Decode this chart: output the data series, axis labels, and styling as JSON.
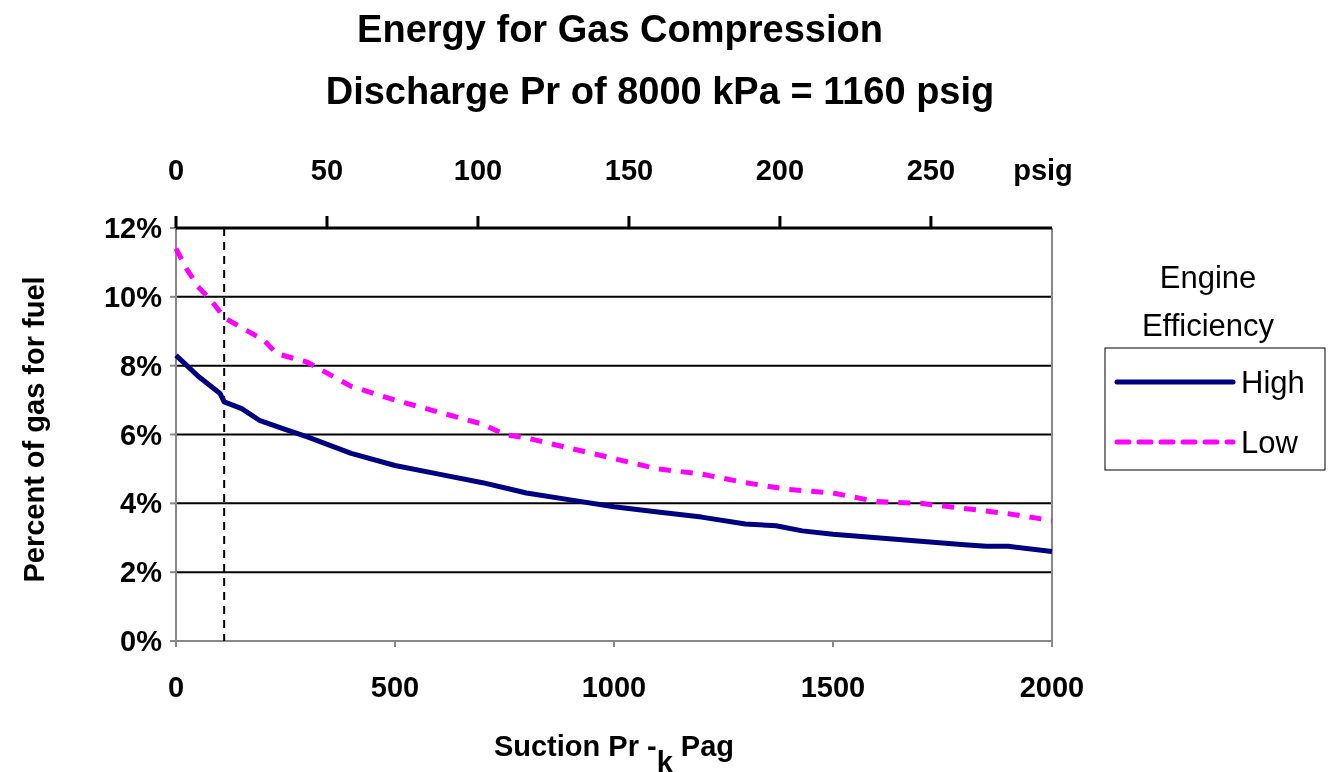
{
  "chart_data": {
    "type": "line",
    "title": "Energy for Gas Compression",
    "subtitle": "Discharge Pr of 8000 kPa = 1160 psig",
    "xlabel": "Suction Pr -$_{k}$ Pag",
    "ylabel": "Percent of gas for fuel",
    "x2label": "psig",
    "legend_title": "Engine Efficiency",
    "legend": "right",
    "grid": "y",
    "xlim": [
      0,
      2000
    ],
    "xticks": [
      0,
      500,
      1000,
      1500,
      2000
    ],
    "x2lim": [
      0,
      290.1
    ],
    "x2ticks": [
      0,
      50,
      100,
      150,
      200,
      250
    ],
    "ylim": [
      0,
      12
    ],
    "yticks": [
      {
        "value": 0,
        "label": "0%"
      },
      {
        "value": 2,
        "label": "2%"
      },
      {
        "value": 4,
        "label": "4%"
      },
      {
        "value": 6,
        "label": "6%"
      },
      {
        "value": 8,
        "label": "8%"
      },
      {
        "value": 10,
        "label": "10%"
      },
      {
        "value": 12,
        "label": "12%"
      }
    ],
    "ref_lines": [
      {
        "axis": "x",
        "value": 110,
        "color": "#000000",
        "line_style": "dashed"
      }
    ],
    "series": [
      {
        "name": "High",
        "color": "#000080",
        "line_style": "solid",
        "x": [
          0,
          25,
          50,
          100,
          110,
          150,
          192,
          249,
          300,
          400,
          500,
          600,
          700,
          800,
          900,
          1000,
          1100,
          1200,
          1300,
          1370,
          1430,
          1500,
          1600,
          1700,
          1800,
          1850,
          1900,
          2000
        ],
        "values": [
          8.3,
          8.0,
          7.7,
          7.2,
          6.95,
          6.75,
          6.4,
          6.15,
          5.93,
          5.45,
          5.1,
          4.85,
          4.6,
          4.3,
          4.1,
          3.9,
          3.75,
          3.6,
          3.4,
          3.35,
          3.2,
          3.1,
          3.0,
          2.9,
          2.8,
          2.75,
          2.75,
          2.6
        ]
      },
      {
        "name": "Low",
        "color": "#ff00ff",
        "line_style": "dashed",
        "x": [
          0,
          25,
          50,
          80,
          110,
          150,
          200,
          230,
          300,
          400,
          500,
          600,
          700,
          750,
          800,
          900,
          1000,
          1100,
          1200,
          1300,
          1400,
          1500,
          1600,
          1700,
          1800,
          1900,
          2000
        ],
        "values": [
          11.4,
          10.8,
          10.3,
          9.9,
          9.4,
          9.1,
          8.75,
          8.35,
          8.1,
          7.4,
          7.0,
          6.65,
          6.3,
          6.0,
          5.9,
          5.6,
          5.3,
          5.0,
          4.85,
          4.6,
          4.4,
          4.3,
          4.05,
          4.0,
          3.85,
          3.7,
          3.5
        ]
      }
    ]
  }
}
